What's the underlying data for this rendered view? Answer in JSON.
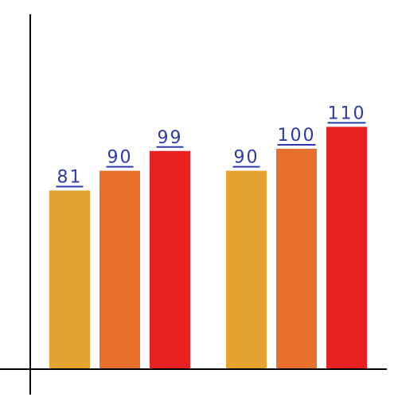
{
  "chart_data": {
    "type": "bar",
    "categories": [
      "",
      ""
    ],
    "series": [
      {
        "values": [
          81,
          90
        ],
        "color": "#e6a22f"
      },
      {
        "values": [
          90,
          100
        ],
        "color": "#e8702d"
      },
      {
        "values": [
          99,
          110
        ],
        "color": "#e82222"
      }
    ],
    "data_labels": true,
    "title": "",
    "xlabel": "",
    "ylabel": "",
    "ylim": [
      0,
      123
    ],
    "grid": false,
    "legend": "none"
  }
}
